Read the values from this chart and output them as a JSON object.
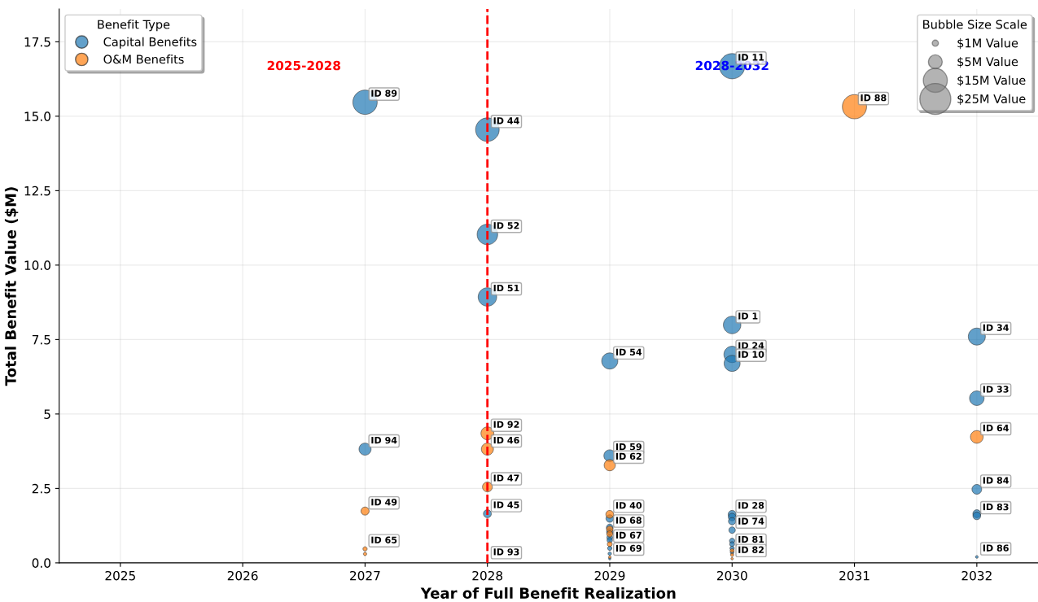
{
  "chart_data": {
    "type": "bubble",
    "xlabel": "Year of Full Benefit Realization",
    "ylabel": "Total Benefit Value ($M)",
    "legend_title": "Benefit Type",
    "legend": "top left",
    "grid": true,
    "xlim": [
      2024.5,
      2032.5
    ],
    "xticks": [
      2025,
      2026,
      2027,
      2028,
      2029,
      2030,
      2031,
      2032
    ],
    "ylim": [
      0,
      18.6
    ],
    "yticks": [
      {
        "value": 0,
        "label": "0.0"
      },
      2.5,
      5,
      7.5,
      {
        "value": 10,
        "label": "10.0"
      },
      12.5,
      {
        "value": 15,
        "label": "15.0"
      },
      17.5
    ],
    "size_legend": [
      {
        "value": 1,
        "label": "$1M Value"
      },
      {
        "value": 5,
        "label": "$5M Value"
      },
      {
        "value": 15,
        "label": "$15M Value"
      },
      {
        "value": 25,
        "label": "$25M Value"
      }
    ],
    "series": [
      {
        "name": "Capital Benefits",
        "color": "#1f77b4",
        "x": [
          2027,
          2027,
          2028,
          2028,
          2028,
          2028,
          2028,
          2029,
          2029,
          2029,
          2029,
          2029,
          2029,
          2029,
          2029,
          2029,
          2029,
          2030,
          2030,
          2030,
          2030,
          2030,
          2030,
          2030,
          2030,
          2030,
          2030,
          2030,
          2030,
          2032,
          2032,
          2032,
          2032,
          2032,
          2032
        ],
        "values": [
          3.82,
          15.47,
          14.55,
          11.03,
          8.93,
          1.65,
          0.07,
          6.78,
          3.6,
          1.49,
          1.19,
          1.04,
          0.85,
          0.76,
          0.49,
          0.31,
          0.14,
          16.68,
          7.99,
          7.0,
          6.7,
          1.63,
          1.54,
          1.4,
          1.1,
          0.74,
          0.63,
          0.49,
          0.35,
          7.6,
          5.53,
          2.47,
          1.65,
          1.58,
          0.2
        ],
        "sizes": [
          3.82,
          15.47,
          14.55,
          11.03,
          8.93,
          1.65,
          0.07,
          6.78,
          3.6,
          1.49,
          1.19,
          1.04,
          0.85,
          0.76,
          0.49,
          0.31,
          0.14,
          16.68,
          7.99,
          7.0,
          6.7,
          1.63,
          1.54,
          1.4,
          1.1,
          0.74,
          0.63,
          0.49,
          0.35,
          7.6,
          5.53,
          2.47,
          1.65,
          1.58,
          0.2
        ]
      },
      {
        "name": "O&M Benefits",
        "color": "#ff7f0e",
        "x": [
          2027,
          2027,
          2027,
          2028,
          2028,
          2028,
          2029,
          2029,
          2029,
          2029,
          2029,
          2029,
          2030,
          2030,
          2030,
          2031,
          2032
        ],
        "values": [
          1.74,
          0.47,
          0.3,
          4.35,
          3.82,
          2.55,
          3.28,
          1.63,
          1.13,
          0.97,
          0.63,
          0.19,
          0.41,
          0.27,
          0.14,
          15.32,
          4.23
        ],
        "sizes": [
          1.74,
          0.47,
          0.3,
          4.35,
          3.82,
          2.55,
          3.28,
          1.63,
          1.13,
          0.97,
          0.63,
          0.19,
          0.41,
          0.27,
          0.14,
          15.32,
          4.23
        ]
      }
    ],
    "ref_lines": [
      {
        "axis": "x",
        "value": 2028,
        "color": "#ff0000",
        "line_style": "dashed"
      }
    ],
    "annotations": [
      "2025-2028",
      "2028-2032",
      "Bubble Size Scale",
      {
        "text": "ID 89",
        "x": 2027,
        "y": 15.47
      },
      {
        "text": "ID 94",
        "x": 2027,
        "y": 3.82
      },
      {
        "text": "ID 49",
        "x": 2027,
        "y": 1.74
      },
      {
        "text": "ID 65",
        "x": 2027,
        "y": 0.47
      },
      {
        "text": "ID 44",
        "x": 2028,
        "y": 14.55
      },
      {
        "text": "ID 52",
        "x": 2028,
        "y": 11.03
      },
      {
        "text": "ID 51",
        "x": 2028,
        "y": 8.93
      },
      {
        "text": "ID 92",
        "x": 2028,
        "y": 4.35
      },
      {
        "text": "ID 46",
        "x": 2028,
        "y": 3.82
      },
      {
        "text": "ID 47",
        "x": 2028,
        "y": 2.55
      },
      {
        "text": "ID 45",
        "x": 2028,
        "y": 1.65
      },
      {
        "text": "ID 93",
        "x": 2028,
        "y": 0.07
      },
      {
        "text": "ID 54",
        "x": 2029,
        "y": 6.78
      },
      {
        "text": "ID 59",
        "x": 2029,
        "y": 3.6
      },
      {
        "text": "ID 62",
        "x": 2029,
        "y": 3.28
      },
      {
        "text": "ID 40",
        "x": 2029,
        "y": 1.63
      },
      {
        "text": "ID 68",
        "x": 2029,
        "y": 1.13
      },
      {
        "text": "ID 67",
        "x": 2029,
        "y": 0.63
      },
      {
        "text": "ID 69",
        "x": 2029,
        "y": 0.19
      },
      {
        "text": "ID 11",
        "x": 2030,
        "y": 16.68
      },
      {
        "text": "ID 1",
        "x": 2030,
        "y": 7.99
      },
      {
        "text": "ID 24",
        "x": 2030,
        "y": 7.0
      },
      {
        "text": "ID 10",
        "x": 2030,
        "y": 6.7
      },
      {
        "text": "ID 28",
        "x": 2030,
        "y": 1.63
      },
      {
        "text": "ID 74",
        "x": 2030,
        "y": 1.1
      },
      {
        "text": "ID 81",
        "x": 2030,
        "y": 0.49
      },
      {
        "text": "ID 82",
        "x": 2030,
        "y": 0.14
      },
      {
        "text": "ID 88",
        "x": 2031,
        "y": 15.32
      },
      {
        "text": "ID 34",
        "x": 2032,
        "y": 7.6
      },
      {
        "text": "ID 33",
        "x": 2032,
        "y": 5.53
      },
      {
        "text": "ID 64",
        "x": 2032,
        "y": 4.23
      },
      {
        "text": "ID 84",
        "x": 2032,
        "y": 2.47
      },
      {
        "text": "ID 83",
        "x": 2032,
        "y": 1.58
      },
      {
        "text": "ID 86",
        "x": 2032,
        "y": 0.2
      }
    ]
  }
}
